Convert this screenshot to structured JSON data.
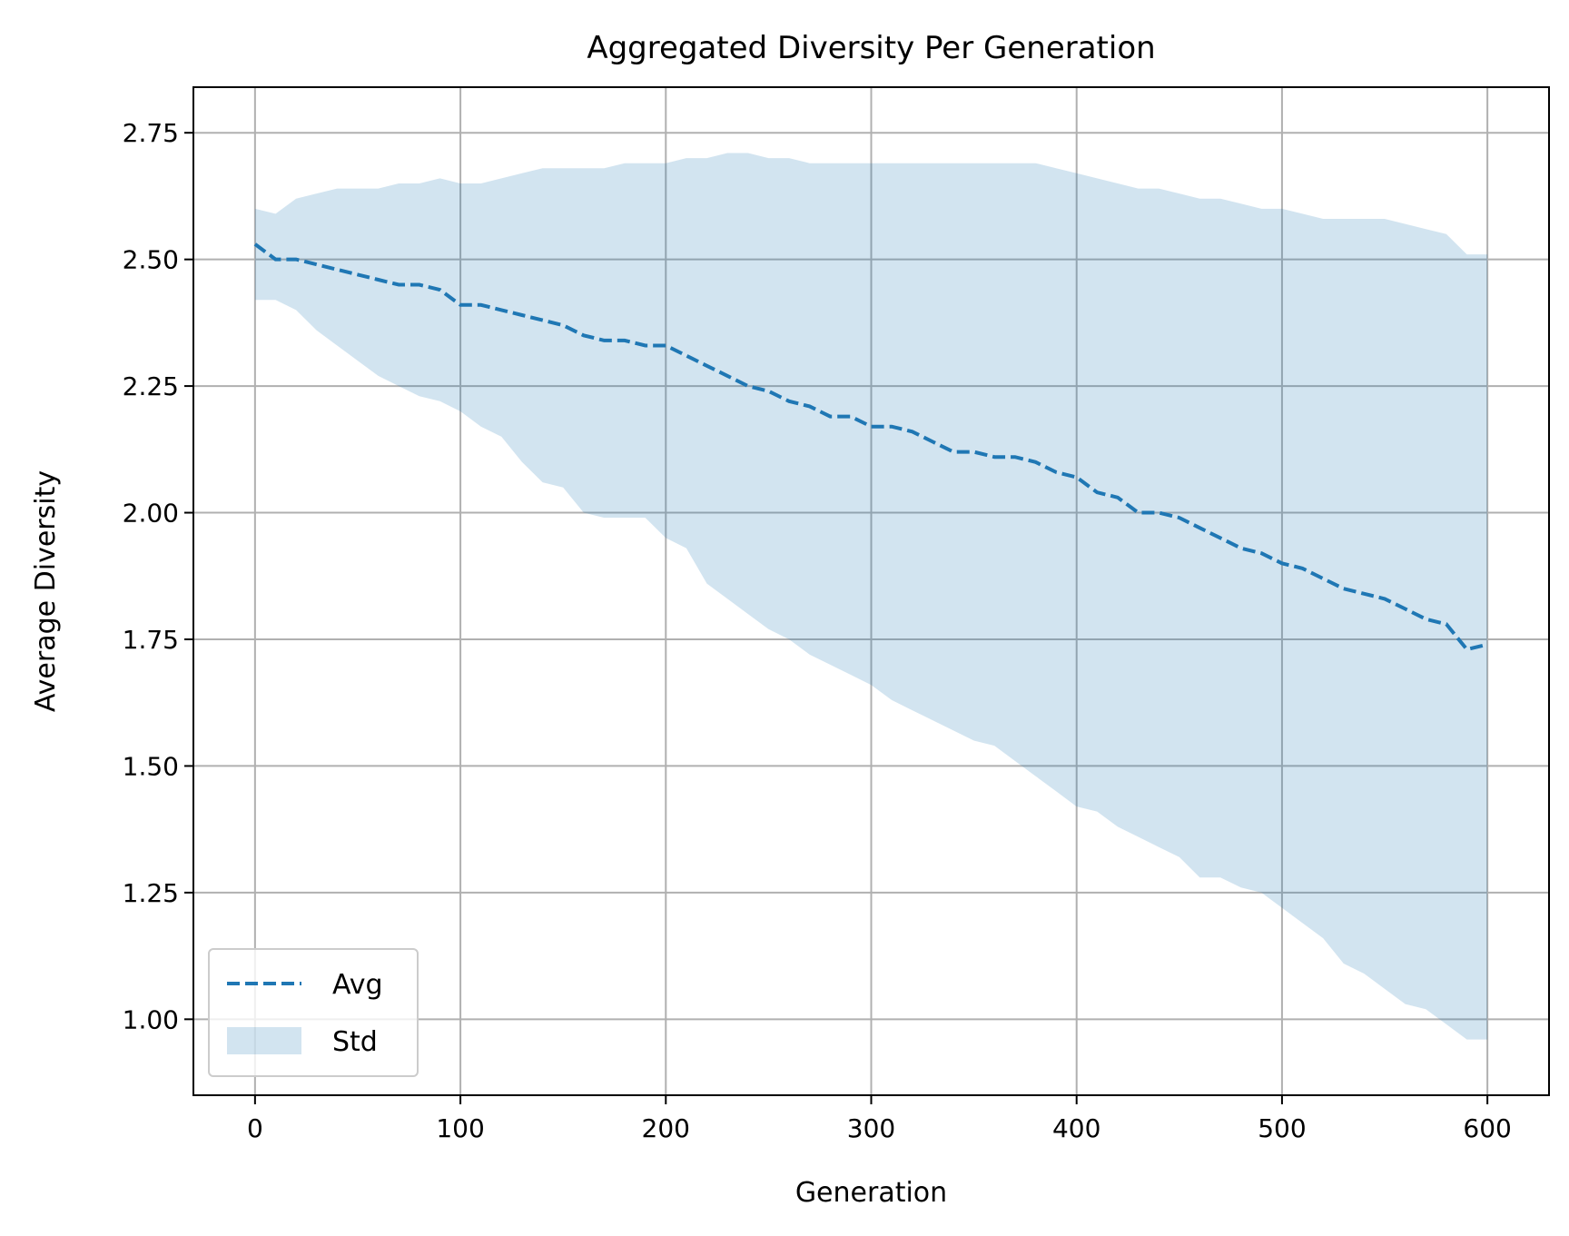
{
  "chart_data": {
    "type": "line",
    "title": "Aggregated Diversity Per Generation",
    "xlabel": "Generation",
    "ylabel": "Average Diversity",
    "xlim": [
      -30,
      630
    ],
    "ylim": [
      0.85,
      2.84
    ],
    "xticks": [
      0,
      100,
      200,
      300,
      400,
      500,
      600
    ],
    "yticks": [
      1.0,
      1.25,
      1.5,
      1.75,
      2.0,
      2.25,
      2.5,
      2.75
    ],
    "grid": true,
    "legend_position": "lower-left",
    "series": [
      {
        "name": "Avg",
        "style": "dashed",
        "color": "#1f77b4",
        "x": [
          0,
          10,
          20,
          30,
          40,
          50,
          60,
          70,
          80,
          90,
          100,
          110,
          120,
          130,
          140,
          150,
          160,
          170,
          180,
          190,
          200,
          210,
          220,
          230,
          240,
          250,
          260,
          270,
          280,
          290,
          300,
          310,
          320,
          330,
          340,
          350,
          360,
          370,
          380,
          390,
          400,
          410,
          420,
          430,
          440,
          450,
          460,
          470,
          480,
          490,
          500,
          510,
          520,
          530,
          540,
          550,
          560,
          570,
          580,
          590,
          600
        ],
        "y": [
          2.53,
          2.5,
          2.5,
          2.49,
          2.48,
          2.47,
          2.46,
          2.45,
          2.45,
          2.44,
          2.41,
          2.41,
          2.4,
          2.39,
          2.38,
          2.37,
          2.35,
          2.34,
          2.34,
          2.33,
          2.33,
          2.31,
          2.29,
          2.27,
          2.25,
          2.24,
          2.22,
          2.21,
          2.19,
          2.19,
          2.17,
          2.17,
          2.16,
          2.14,
          2.12,
          2.12,
          2.11,
          2.11,
          2.1,
          2.08,
          2.07,
          2.04,
          2.03,
          2.0,
          2.0,
          1.99,
          1.97,
          1.95,
          1.93,
          1.92,
          1.9,
          1.89,
          1.87,
          1.85,
          1.84,
          1.83,
          1.81,
          1.79,
          1.78,
          1.73,
          1.74
        ]
      },
      {
        "name": "Std",
        "style": "band",
        "color": "#1f77b4",
        "opacity": 0.2,
        "x": [
          0,
          10,
          20,
          30,
          40,
          50,
          60,
          70,
          80,
          90,
          100,
          110,
          120,
          130,
          140,
          150,
          160,
          170,
          180,
          190,
          200,
          210,
          220,
          230,
          240,
          250,
          260,
          270,
          280,
          290,
          300,
          310,
          320,
          330,
          340,
          350,
          360,
          370,
          380,
          390,
          400,
          410,
          420,
          430,
          440,
          450,
          460,
          470,
          480,
          490,
          500,
          510,
          520,
          530,
          540,
          550,
          560,
          570,
          580,
          590,
          600
        ],
        "upper": [
          2.6,
          2.59,
          2.62,
          2.63,
          2.64,
          2.64,
          2.64,
          2.65,
          2.65,
          2.66,
          2.65,
          2.65,
          2.66,
          2.67,
          2.68,
          2.68,
          2.68,
          2.68,
          2.69,
          2.69,
          2.69,
          2.7,
          2.7,
          2.71,
          2.71,
          2.7,
          2.7,
          2.69,
          2.69,
          2.69,
          2.69,
          2.69,
          2.69,
          2.69,
          2.69,
          2.69,
          2.69,
          2.69,
          2.69,
          2.68,
          2.67,
          2.66,
          2.65,
          2.64,
          2.64,
          2.63,
          2.62,
          2.62,
          2.61,
          2.6,
          2.6,
          2.59,
          2.58,
          2.58,
          2.58,
          2.58,
          2.57,
          2.56,
          2.55,
          2.51,
          2.51
        ],
        "lower": [
          2.42,
          2.42,
          2.4,
          2.36,
          2.33,
          2.3,
          2.27,
          2.25,
          2.23,
          2.22,
          2.2,
          2.17,
          2.15,
          2.1,
          2.06,
          2.05,
          2.0,
          1.99,
          1.99,
          1.99,
          1.95,
          1.93,
          1.86,
          1.83,
          1.8,
          1.77,
          1.75,
          1.72,
          1.7,
          1.68,
          1.66,
          1.63,
          1.61,
          1.59,
          1.57,
          1.55,
          1.54,
          1.51,
          1.48,
          1.45,
          1.42,
          1.41,
          1.38,
          1.36,
          1.34,
          1.32,
          1.28,
          1.28,
          1.26,
          1.25,
          1.22,
          1.19,
          1.16,
          1.11,
          1.09,
          1.06,
          1.03,
          1.02,
          0.99,
          0.96,
          0.96
        ]
      }
    ]
  }
}
